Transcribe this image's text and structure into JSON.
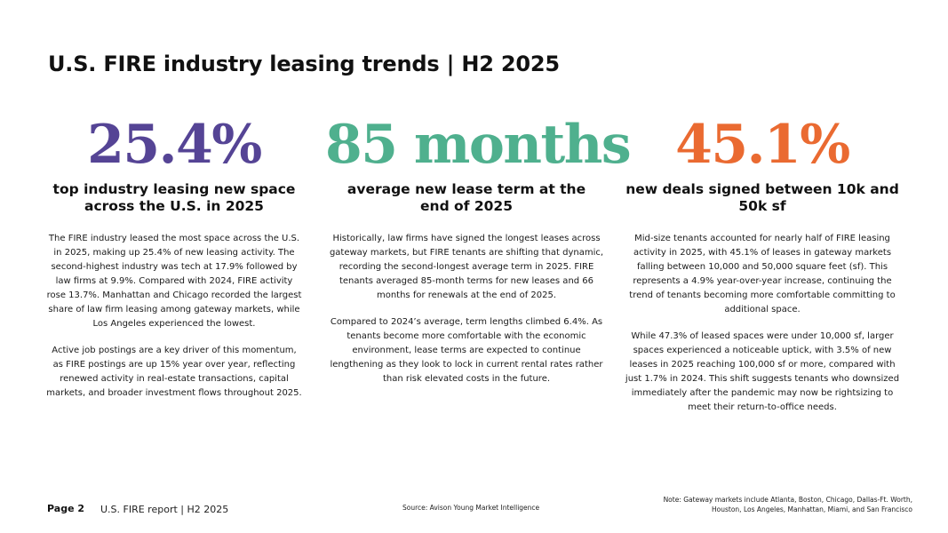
{
  "title": "U.S. FIRE industry leasing trends | H2 2025",
  "colors": {
    "purple": "#554495",
    "green": "#4fb08e",
    "orange": "#ea6a31"
  },
  "columns": [
    {
      "stat": "25.4%",
      "subhead": "top industry leasing new space across the U.S. in 2025",
      "paragraphs": [
        "The FIRE industry leased the most space across the U.S. in 2025, making up 25.4% of new leasing activity. The second-highest industry was tech at 17.9% followed by law firms at 9.9%. Compared with 2024, FIRE activity rose 13.7%. Manhattan and Chicago recorded the largest share of law firm leasing among gateway markets, while Los Angeles experienced the lowest.",
        "Active job postings are a key driver of this momentum, as FIRE postings are up 15% year over year, reflecting renewed activity in real-estate transactions, capital markets, and broader investment flows throughout 2025."
      ]
    },
    {
      "stat": "85 months",
      "subhead": "average new lease term at the end of 2025",
      "paragraphs": [
        "Historically, law firms have signed the longest leases across gateway markets, but FIRE tenants are shifting that dynamic, recording the second-longest average term in 2025. FIRE tenants averaged 85-month terms for new leases and 66 months for renewals at the end of 2025.",
        "Compared to 2024’s average, term lengths climbed 6.4%. As tenants become more comfortable with the economic environment, lease terms are expected to continue lengthening as they look to lock in current rental rates rather than risk elevated costs in the future."
      ]
    },
    {
      "stat": "45.1%",
      "subhead": "new deals signed between 10k and 50k sf",
      "paragraphs": [
        "Mid-size tenants accounted for nearly half of FIRE leasing activity in 2025, with 45.1% of leases in gateway markets falling between 10,000 and 50,000 square feet (sf). This represents a 4.9% year-over-year increase, continuing the trend of tenants becoming more comfortable committing to additional space.",
        "While 47.3% of leased spaces were under 10,000 sf, larger spaces experienced a noticeable uptick, with 3.5% of new leases in 2025 reaching 100,000 sf or more, compared with just 1.7% in 2024. This shift suggests tenants who downsized immediately after the pandemic may now be rightsizing to meet their return-to-office needs."
      ]
    }
  ],
  "footer": {
    "page": "Page 2",
    "report": "U.S. FIRE report | H2 2025",
    "source": "Source: Avison Young Market Intelligence",
    "note": "Note: Gateway markets include Atlanta, Boston, Chicago, Dallas-Ft. Worth, Houston, Los Angeles, Manhattan, Miami, and San Francisco"
  }
}
